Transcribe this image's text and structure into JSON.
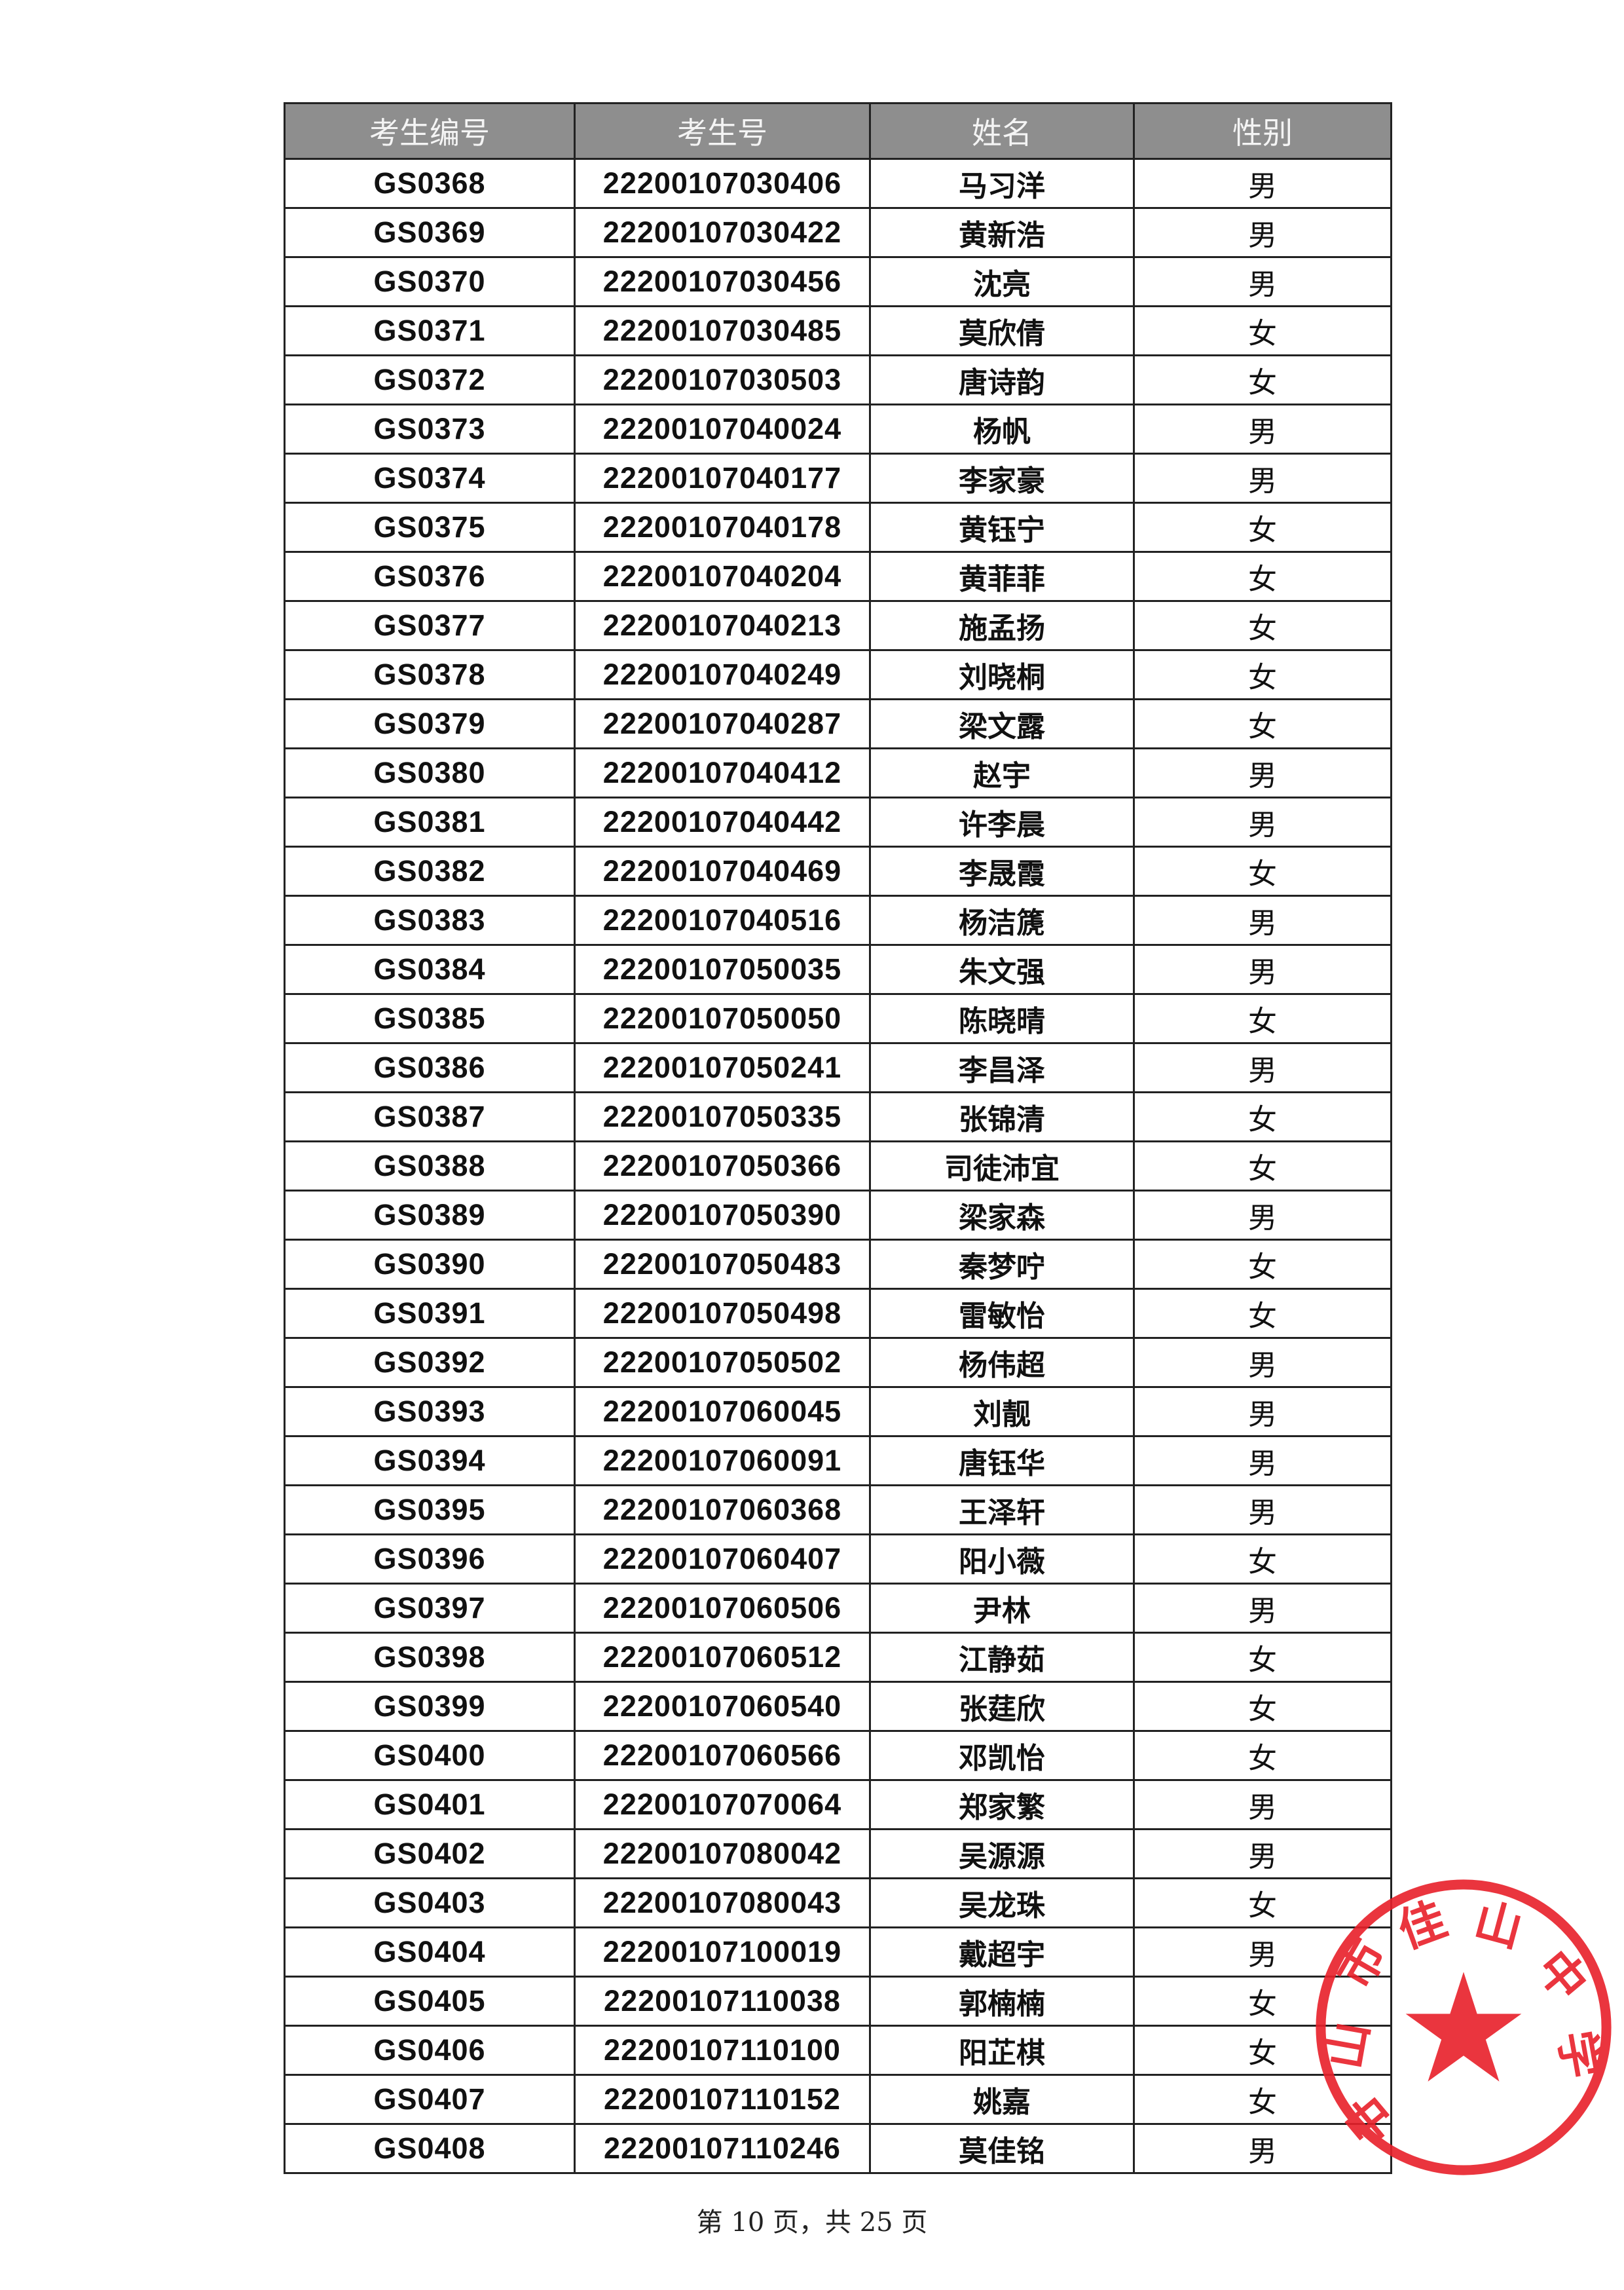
{
  "table": {
    "headers": [
      "考生编号",
      "考生号",
      "姓名",
      "性别"
    ],
    "rows": [
      [
        "GS0368",
        "22200107030406",
        "马习洋",
        "男"
      ],
      [
        "GS0369",
        "22200107030422",
        "黄新浩",
        "男"
      ],
      [
        "GS0370",
        "22200107030456",
        "沈亮",
        "男"
      ],
      [
        "GS0371",
        "22200107030485",
        "莫欣倩",
        "女"
      ],
      [
        "GS0372",
        "22200107030503",
        "唐诗韵",
        "女"
      ],
      [
        "GS0373",
        "22200107040024",
        "杨帆",
        "男"
      ],
      [
        "GS0374",
        "22200107040177",
        "李家豪",
        "男"
      ],
      [
        "GS0375",
        "22200107040178",
        "黄钰宁",
        "女"
      ],
      [
        "GS0376",
        "22200107040204",
        "黄菲菲",
        "女"
      ],
      [
        "GS0377",
        "22200107040213",
        "施孟扬",
        "女"
      ],
      [
        "GS0378",
        "22200107040249",
        "刘晓桐",
        "女"
      ],
      [
        "GS0379",
        "22200107040287",
        "梁文露",
        "女"
      ],
      [
        "GS0380",
        "22200107040412",
        "赵宇",
        "男"
      ],
      [
        "GS0381",
        "22200107040442",
        "许李晨",
        "男"
      ],
      [
        "GS0382",
        "22200107040469",
        "李晟霞",
        "女"
      ],
      [
        "GS0383",
        "22200107040516",
        "杨洁篪",
        "男"
      ],
      [
        "GS0384",
        "22200107050035",
        "朱文强",
        "男"
      ],
      [
        "GS0385",
        "22200107050050",
        "陈晓晴",
        "女"
      ],
      [
        "GS0386",
        "22200107050241",
        "李昌泽",
        "男"
      ],
      [
        "GS0387",
        "22200107050335",
        "张锦清",
        "女"
      ],
      [
        "GS0388",
        "22200107050366",
        "司徒沛宜",
        "女"
      ],
      [
        "GS0389",
        "22200107050390",
        "梁家森",
        "男"
      ],
      [
        "GS0390",
        "22200107050483",
        "秦梦咛",
        "女"
      ],
      [
        "GS0391",
        "22200107050498",
        "雷敏怡",
        "女"
      ],
      [
        "GS0392",
        "22200107050502",
        "杨伟超",
        "男"
      ],
      [
        "GS0393",
        "22200107060045",
        "刘靓",
        "男"
      ],
      [
        "GS0394",
        "22200107060091",
        "唐钰华",
        "男"
      ],
      [
        "GS0395",
        "22200107060368",
        "王泽轩",
        "男"
      ],
      [
        "GS0396",
        "22200107060407",
        "阳小薇",
        "女"
      ],
      [
        "GS0397",
        "22200107060506",
        "尹林",
        "男"
      ],
      [
        "GS0398",
        "22200107060512",
        "江静茹",
        "女"
      ],
      [
        "GS0399",
        "22200107060540",
        "张莛欣",
        "女"
      ],
      [
        "GS0400",
        "22200107060566",
        "邓凯怡",
        "女"
      ],
      [
        "GS0401",
        "22200107070064",
        "郑家繁",
        "男"
      ],
      [
        "GS0402",
        "22200107080042",
        "吴源源",
        "男"
      ],
      [
        "GS0403",
        "22200107080043",
        "吴龙珠",
        "女"
      ],
      [
        "GS0404",
        "22200107100019",
        "戴超宇",
        "男"
      ],
      [
        "GS0405",
        "22200107110038",
        "郭楠楠",
        "女"
      ],
      [
        "GS0406",
        "22200107110100",
        "阳芷棋",
        "女"
      ],
      [
        "GS0407",
        "22200107110152",
        "姚嘉",
        "女"
      ],
      [
        "GS0408",
        "22200107110246",
        "莫佳铭",
        "男"
      ]
    ]
  },
  "footer": {
    "page_text": "第 10 页，共 25 页"
  },
  "stamp": {
    "text": "中山市佳山中学",
    "color": "#e8202a",
    "icon": "star-icon"
  }
}
